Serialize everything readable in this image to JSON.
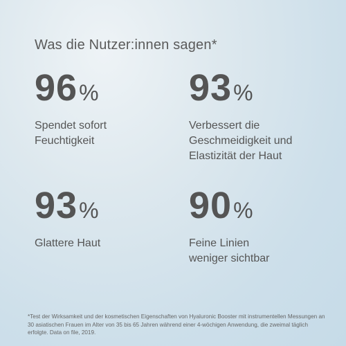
{
  "title": "Was die Nutzer:innen sagen*",
  "stats": [
    {
      "value": "96",
      "unit": "%",
      "label": [
        "Spendet sofort",
        "Feuchtigkeit"
      ]
    },
    {
      "value": "93",
      "unit": "%",
      "label": [
        "Verbessert die",
        "Geschmeidigkeit und",
        "Elastizität der Haut"
      ]
    },
    {
      "value": "93",
      "unit": "%",
      "label": [
        "Glattere Haut"
      ]
    },
    {
      "value": "90",
      "unit": "%",
      "label": [
        "Feine Linien",
        "weniger sichtbar"
      ]
    }
  ],
  "footnote": [
    "*Test der Wirksamkeit und der kosmetischen Eigenschaften von Hyaluronic Booster mit instrumentellen Messungen an",
    "30 asiatischen Frauen im Alter von 35 bis 65 Jahren während einer 4-wöchigen Anwendung, die zweimal täglich",
    "erfolgte. Data on file, 2019."
  ]
}
